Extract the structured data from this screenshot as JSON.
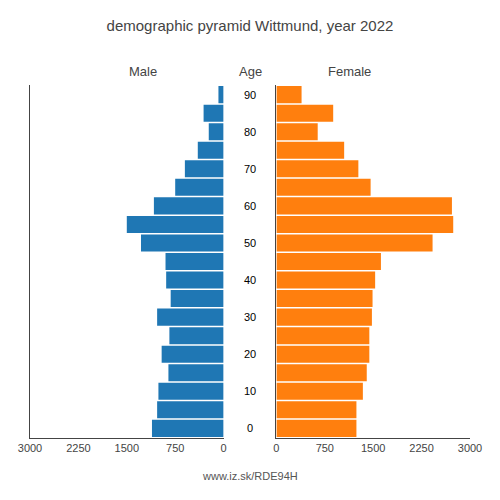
{
  "chart_data": {
    "type": "bar",
    "orientation": "horizontal",
    "title": "demographic pyramid Wittmund, year 2022",
    "ylabel": "Age",
    "categories": [
      90,
      85,
      80,
      75,
      70,
      65,
      60,
      55,
      50,
      45,
      40,
      35,
      30,
      25,
      20,
      15,
      10,
      5,
      0
    ],
    "series": [
      {
        "name": "Male",
        "values": [
          80,
          310,
          230,
          400,
          600,
          750,
          1080,
          1500,
          1280,
          900,
          890,
          820,
          1030,
          840,
          960,
          855,
          1010,
          1030,
          1110
        ]
      },
      {
        "name": "Female",
        "values": [
          390,
          880,
          640,
          1050,
          1270,
          1460,
          2720,
          2740,
          2420,
          1620,
          1530,
          1490,
          1480,
          1440,
          1440,
          1400,
          1340,
          1240,
          1240
        ]
      }
    ],
    "xlim": [
      0,
      3000
    ],
    "xticks": [
      0,
      750,
      1500,
      2250,
      3000
    ],
    "ylim": [
      -2.6,
      92.6
    ],
    "yticks": [
      0,
      10,
      20,
      30,
      40,
      50,
      60,
      70,
      80,
      90
    ],
    "annotations": [
      "www.iz.sk/RDE94H"
    ],
    "grid": false
  }
}
